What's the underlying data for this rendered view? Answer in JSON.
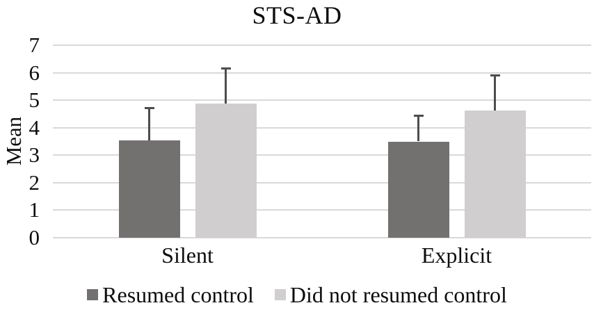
{
  "chart_data": {
    "type": "bar",
    "title": "STS-AD",
    "ylabel": "Mean",
    "xlabel": "",
    "categories": [
      "Silent",
      "Explicit"
    ],
    "series": [
      {
        "name": "Resumed control",
        "color": "#737070",
        "values": [
          3.55,
          3.5
        ],
        "error_up": [
          1.2,
          0.97
        ]
      },
      {
        "name": "Did not resumed control",
        "color": "#d0cece",
        "values": [
          4.88,
          4.62
        ],
        "error_up": [
          1.32,
          1.33
        ]
      }
    ],
    "ylim": [
      0,
      7
    ],
    "ytick_step": 1,
    "yticks": [
      0,
      1,
      2,
      3,
      4,
      5,
      6,
      7
    ],
    "grid": true,
    "legend_position": "bottom",
    "gridline_color": "#d9d9d9",
    "error_bar_color": "#4d4d4d",
    "background_color": "#ffffff",
    "text_color": "#0d0d0d"
  }
}
